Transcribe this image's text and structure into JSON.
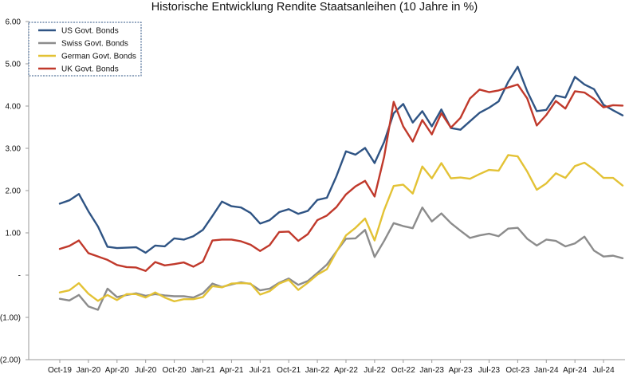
{
  "chart_data": {
    "type": "line",
    "title": "Historische Entwicklung Rendite Staatsanleihen (10 Jahre in %)",
    "xlabel": "",
    "ylabel": "",
    "ylim": [
      -2,
      6
    ],
    "y_tick_labels": [
      {
        "value": 6,
        "label": "6.00"
      },
      {
        "value": 5,
        "label": "5.00"
      },
      {
        "value": 4,
        "label": "4.00"
      },
      {
        "value": 3,
        "label": "3.00"
      },
      {
        "value": 2,
        "label": "2.00"
      },
      {
        "value": 1,
        "label": "1.00"
      },
      {
        "value": 0,
        "label": "-"
      },
      {
        "value": -1,
        "label": "(1.00)"
      },
      {
        "value": -2,
        "label": "(2.00)"
      }
    ],
    "x_tick_labels": [
      {
        "index": 0,
        "label": "Oct-19"
      },
      {
        "index": 3,
        "label": "Jan-20"
      },
      {
        "index": 6,
        "label": "Apr-20"
      },
      {
        "index": 9,
        "label": "Jul-20"
      },
      {
        "index": 12,
        "label": "Oct-20"
      },
      {
        "index": 15,
        "label": "Jan-21"
      },
      {
        "index": 18,
        "label": "Apr-21"
      },
      {
        "index": 21,
        "label": "Jul-21"
      },
      {
        "index": 24,
        "label": "Oct-21"
      },
      {
        "index": 27,
        "label": "Jan-22"
      },
      {
        "index": 30,
        "label": "Apr-22"
      },
      {
        "index": 33,
        "label": "Jul-22"
      },
      {
        "index": 36,
        "label": "Oct-22"
      },
      {
        "index": 39,
        "label": "Jan-23"
      },
      {
        "index": 42,
        "label": "Apr-23"
      },
      {
        "index": 45,
        "label": "Jul-23"
      },
      {
        "index": 48,
        "label": "Oct-23"
      },
      {
        "index": 51,
        "label": "Jan-24"
      },
      {
        "index": 54,
        "label": "Apr-24"
      },
      {
        "index": 57,
        "label": "Jul-24"
      }
    ],
    "x": [
      "Oct-19",
      "Nov-19",
      "Dec-19",
      "Jan-20",
      "Feb-20",
      "Mar-20",
      "Apr-20",
      "May-20",
      "Jun-20",
      "Jul-20",
      "Aug-20",
      "Sep-20",
      "Oct-20",
      "Nov-20",
      "Dec-20",
      "Jan-21",
      "Feb-21",
      "Mar-21",
      "Apr-21",
      "May-21",
      "Jun-21",
      "Jul-21",
      "Aug-21",
      "Sep-21",
      "Oct-21",
      "Nov-21",
      "Dec-21",
      "Jan-22",
      "Feb-22",
      "Mar-22",
      "Apr-22",
      "May-22",
      "Jun-22",
      "Jul-22",
      "Aug-22",
      "Sep-22",
      "Oct-22",
      "Nov-22",
      "Dec-22",
      "Jan-23",
      "Feb-23",
      "Mar-23",
      "Apr-23",
      "May-23",
      "Jun-23",
      "Jul-23",
      "Aug-23",
      "Sep-23",
      "Oct-23",
      "Nov-23",
      "Dec-23",
      "Jan-24",
      "Feb-24",
      "Mar-24",
      "Apr-24",
      "May-24",
      "Jun-24",
      "Jul-24",
      "Aug-24",
      "Sep-24"
    ],
    "grid": false,
    "legend_position": "top-left",
    "series": [
      {
        "name": "US Govt. Bonds",
        "color": "#2f5484",
        "values": [
          1.69,
          1.77,
          1.92,
          1.51,
          1.15,
          0.67,
          0.64,
          0.65,
          0.66,
          0.53,
          0.7,
          0.68,
          0.87,
          0.84,
          0.92,
          1.07,
          1.4,
          1.74,
          1.63,
          1.6,
          1.47,
          1.22,
          1.3,
          1.49,
          1.56,
          1.45,
          1.52,
          1.78,
          1.83,
          2.34,
          2.93,
          2.85,
          3.01,
          2.65,
          3.15,
          3.83,
          4.05,
          3.61,
          3.88,
          3.52,
          3.92,
          3.48,
          3.44,
          3.64,
          3.84,
          3.96,
          4.11,
          4.57,
          4.93,
          4.35,
          3.88,
          3.91,
          4.25,
          4.2,
          4.69,
          4.51,
          4.4,
          4.03,
          3.9,
          3.78
        ]
      },
      {
        "name": "Swiss Govt. Bonds",
        "color": "#8c8c8c",
        "values": [
          -0.56,
          -0.6,
          -0.47,
          -0.74,
          -0.82,
          -0.32,
          -0.52,
          -0.47,
          -0.43,
          -0.49,
          -0.45,
          -0.48,
          -0.5,
          -0.5,
          -0.53,
          -0.43,
          -0.2,
          -0.28,
          -0.22,
          -0.17,
          -0.21,
          -0.36,
          -0.32,
          -0.18,
          -0.08,
          -0.23,
          -0.14,
          0.05,
          0.25,
          0.56,
          0.86,
          0.87,
          1.07,
          0.43,
          0.81,
          1.23,
          1.16,
          1.11,
          1.6,
          1.27,
          1.46,
          1.23,
          1.05,
          0.88,
          0.94,
          0.98,
          0.92,
          1.1,
          1.12,
          0.86,
          0.7,
          0.84,
          0.81,
          0.68,
          0.75,
          0.91,
          0.58,
          0.44,
          0.46,
          0.4
        ]
      },
      {
        "name": "German Govt. Bonds",
        "color": "#e3c235",
        "values": [
          -0.41,
          -0.36,
          -0.19,
          -0.44,
          -0.61,
          -0.47,
          -0.59,
          -0.45,
          -0.45,
          -0.53,
          -0.41,
          -0.53,
          -0.62,
          -0.57,
          -0.57,
          -0.52,
          -0.26,
          -0.29,
          -0.2,
          -0.19,
          -0.2,
          -0.46,
          -0.38,
          -0.2,
          -0.11,
          -0.35,
          -0.18,
          0.01,
          0.14,
          0.55,
          0.94,
          1.12,
          1.34,
          0.82,
          1.54,
          2.11,
          2.14,
          1.93,
          2.57,
          2.29,
          2.65,
          2.29,
          2.31,
          2.28,
          2.39,
          2.49,
          2.47,
          2.84,
          2.81,
          2.45,
          2.02,
          2.17,
          2.41,
          2.3,
          2.58,
          2.66,
          2.5,
          2.3,
          2.3,
          2.12
        ]
      },
      {
        "name": "UK Govt. Bonds",
        "color": "#c0392b",
        "values": [
          0.62,
          0.69,
          0.82,
          0.52,
          0.44,
          0.36,
          0.24,
          0.19,
          0.18,
          0.1,
          0.31,
          0.23,
          0.26,
          0.3,
          0.2,
          0.32,
          0.82,
          0.84,
          0.84,
          0.8,
          0.72,
          0.57,
          0.71,
          1.02,
          1.03,
          0.81,
          0.97,
          1.3,
          1.41,
          1.61,
          1.91,
          2.1,
          2.23,
          1.86,
          2.8,
          4.1,
          3.52,
          3.16,
          3.67,
          3.33,
          3.83,
          3.49,
          3.72,
          4.18,
          4.39,
          4.33,
          4.37,
          4.44,
          4.51,
          4.18,
          3.54,
          3.79,
          4.12,
          3.94,
          4.35,
          4.32,
          4.17,
          3.97,
          4.02,
          4.01
        ]
      }
    ]
  }
}
